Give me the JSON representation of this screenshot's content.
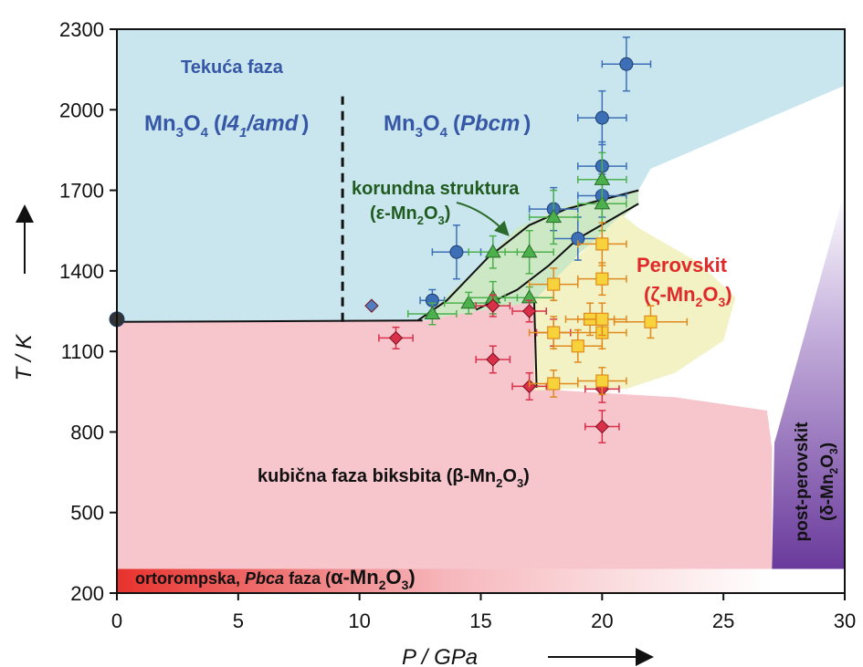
{
  "chart_data": {
    "type": "scatter",
    "title": "",
    "xlabel": "P / GPa",
    "ylabel": "T / K",
    "xlim": [
      0,
      30
    ],
    "ylim": [
      200,
      2300
    ],
    "x_ticks": [
      "0",
      "5",
      "10",
      "15",
      "20",
      "25",
      "30"
    ],
    "y_ticks": [
      "200",
      "500",
      "800",
      "1100",
      "1400",
      "1700",
      "2000",
      "2300"
    ],
    "grid": false,
    "region_labels": {
      "liquid": "Tekuća faza",
      "mn3o4_tet_a": "Mn",
      "mn3o4_tet_b": "3",
      "mn3o4_tet_c": "O",
      "mn3o4_tet_d": "4",
      "mn3o4_tet_e": "(",
      "mn3o4_tet_f": "I4",
      "mn3o4_tet_g": "1",
      "mn3o4_tet_h": "/amd",
      "mn3o4_tet_i": ")",
      "mn3o4_orth_a": "Mn",
      "mn3o4_orth_b": "3",
      "mn3o4_orth_c": "O",
      "mn3o4_orth_d": "4",
      "mn3o4_orth_e": "(",
      "mn3o4_orth_f": "Pbcm",
      "mn3o4_orth_g": ")",
      "corundum_1": "korundna struktura",
      "corundum_2_a": "(ε-Mn",
      "corundum_2_b": "2",
      "corundum_2_c": "O",
      "corundum_2_d": "3",
      "corundum_2_e": ")",
      "perovskite_1": "Perovskit",
      "perovskite_2_a": "(ζ-Mn",
      "perovskite_2_b": "2",
      "perovskite_2_c": "O",
      "perovskite_2_d": "3",
      "perovskite_2_e": ")",
      "bixbyite_a": "kubična faza biksbita (β-Mn",
      "bixbyite_b": "2",
      "bixbyite_c": "O",
      "bixbyite_d": "3",
      "bixbyite_e": ")",
      "orthorhombic_a": "ortorompska, ",
      "orthorhombic_b": "Pbca",
      "orthorhombic_c": " faza (",
      "orthorhombic_d": "α-Mn",
      "orthorhombic_e": "2",
      "orthorhombic_f": "O",
      "orthorhombic_g": "3",
      "orthorhombic_h": ")",
      "post_perovskite_1": "post-perovskit",
      "post_perovskite_2_a": "(δ-Mn",
      "post_perovskite_2_b": "2",
      "post_perovskite_2_c": "O",
      "post_perovskite_2_d": "3",
      "post_perovskite_2_e": ")"
    },
    "regions": [
      {
        "name": "liquid",
        "color": "#c9e6ef",
        "points": [
          [
            0,
            1210
          ],
          [
            0,
            2300
          ],
          [
            30,
            2300
          ],
          [
            30,
            2090
          ],
          [
            22,
            1780
          ],
          [
            21.5,
            1700
          ],
          [
            20.8,
            1670
          ],
          [
            18.8,
            1560
          ],
          [
            17.2,
            1290
          ],
          [
            15.5,
            1270
          ],
          [
            12.8,
            1215
          ]
        ]
      },
      {
        "name": "bixbyite",
        "color": "#f7c6cc",
        "points": [
          [
            0,
            290
          ],
          [
            27,
            290
          ],
          [
            27,
            740
          ],
          [
            26.8,
            880
          ],
          [
            23,
            930
          ],
          [
            17.3,
            960
          ],
          [
            17.2,
            1290
          ],
          [
            15.5,
            1270
          ],
          [
            12.8,
            1215
          ],
          [
            0,
            1210
          ]
        ]
      },
      {
        "name": "corundum",
        "color": "#cde8c4",
        "points": [
          [
            12.5,
            1215
          ],
          [
            14.5,
            1380
          ],
          [
            16.5,
            1560
          ],
          [
            18.5,
            1640
          ],
          [
            21.5,
            1700
          ],
          [
            21.5,
            1650
          ],
          [
            19,
            1460
          ],
          [
            17.5,
            1290
          ],
          [
            15.5,
            1260
          ]
        ]
      },
      {
        "name": "perovskite",
        "color": "#f2f2c4",
        "points": [
          [
            17.2,
            1290
          ],
          [
            18.5,
            1410
          ],
          [
            20.8,
            1610
          ],
          [
            21.5,
            1560
          ],
          [
            24,
            1430
          ],
          [
            25.5,
            1300
          ],
          [
            25,
            1140
          ],
          [
            23,
            1020
          ],
          [
            21,
            960
          ],
          [
            17.2,
            955
          ]
        ]
      },
      {
        "name": "white_gap",
        "color": "#ffffff",
        "points": [
          [
            22,
            1780
          ],
          [
            30,
            2090
          ],
          [
            30,
            1700
          ],
          [
            29.5,
            1540
          ],
          [
            27.5,
            1150
          ],
          [
            27,
            740
          ],
          [
            26.8,
            880
          ],
          [
            23,
            930
          ],
          [
            17.3,
            960
          ],
          [
            21,
            960
          ],
          [
            23,
            1020
          ],
          [
            25,
            1140
          ],
          [
            25.5,
            1300
          ],
          [
            24,
            1430
          ],
          [
            21.5,
            1560
          ],
          [
            21.5,
            1700
          ]
        ]
      },
      {
        "name": "post_perovskite",
        "color": "#9a72c0",
        "points": [
          [
            27,
            290
          ],
          [
            30,
            290
          ],
          [
            30,
            1700
          ],
          [
            28,
            1050
          ],
          [
            27.1,
            760
          ]
        ]
      }
    ],
    "boundaries": [
      {
        "style": "solid",
        "points": [
          [
            0,
            1210
          ],
          [
            12.6,
            1215
          ]
        ]
      },
      {
        "style": "solid",
        "points": [
          [
            12.4,
            1215
          ],
          [
            13.6,
            1290
          ],
          [
            15.3,
            1450
          ],
          [
            17,
            1570
          ],
          [
            18.5,
            1630
          ],
          [
            21.5,
            1700
          ]
        ]
      },
      {
        "style": "solid",
        "points": [
          [
            14.8,
            1255
          ],
          [
            16.5,
            1330
          ],
          [
            17.8,
            1420
          ],
          [
            19,
            1520
          ],
          [
            21.5,
            1650
          ]
        ]
      },
      {
        "style": "solid",
        "points": [
          [
            17.3,
            965
          ],
          [
            17.2,
            1295
          ]
        ]
      },
      {
        "style": "dashed",
        "points": [
          [
            9.3,
            1210
          ],
          [
            9.3,
            2050
          ]
        ]
      }
    ],
    "series": [
      {
        "marker": "circle",
        "color": "#3c6fb5",
        "points": [
          {
            "x": 0,
            "y": 1220,
            "xerr": 0,
            "yerr": 0,
            "color": "#333333"
          },
          {
            "x": 13,
            "y": 1290,
            "xerr": 0.5,
            "yerr": 40
          },
          {
            "x": 14,
            "y": 1470,
            "xerr": 1,
            "yerr": 100
          },
          {
            "x": 18,
            "y": 1630,
            "xerr": 1,
            "yerr": 80
          },
          {
            "x": 19,
            "y": 1520,
            "xerr": 1,
            "yerr": 80
          },
          {
            "x": 20,
            "y": 1680,
            "xerr": 1,
            "yerr": 80
          },
          {
            "x": 20,
            "y": 1790,
            "xerr": 1,
            "yerr": 90
          },
          {
            "x": 20,
            "y": 1970,
            "xerr": 1,
            "yerr": 100
          },
          {
            "x": 21,
            "y": 2170,
            "xerr": 1,
            "yerr": 100
          }
        ]
      },
      {
        "marker": "diamond",
        "color": "#4f7fc0",
        "points": [
          {
            "x": 10.5,
            "y": 1270,
            "xerr": 0,
            "yerr": 0
          }
        ]
      },
      {
        "marker": "triangle",
        "color": "#4cb04c",
        "points": [
          {
            "x": 13,
            "y": 1240,
            "xerr": 1,
            "yerr": 40
          },
          {
            "x": 14.5,
            "y": 1280,
            "xerr": 1,
            "yerr": 40
          },
          {
            "x": 15.5,
            "y": 1300,
            "xerr": 1,
            "yerr": 60
          },
          {
            "x": 15.5,
            "y": 1470,
            "xerr": 1,
            "yerr": 60
          },
          {
            "x": 17,
            "y": 1300,
            "xerr": 1,
            "yerr": 40
          },
          {
            "x": 17,
            "y": 1470,
            "xerr": 1,
            "yerr": 80
          },
          {
            "x": 18,
            "y": 1600,
            "xerr": 1,
            "yerr": 100
          },
          {
            "x": 20,
            "y": 1650,
            "xerr": 1,
            "yerr": 100
          },
          {
            "x": 20,
            "y": 1740,
            "xerr": 1,
            "yerr": 100
          }
        ]
      },
      {
        "marker": "diamond",
        "color": "#d9304a",
        "points": [
          {
            "x": 11.5,
            "y": 1150,
            "xerr": 0.7,
            "yerr": 40
          },
          {
            "x": 15.5,
            "y": 1070,
            "xerr": 0.7,
            "yerr": 50
          },
          {
            "x": 15.5,
            "y": 1270,
            "xerr": 0.7,
            "yerr": 40
          },
          {
            "x": 17,
            "y": 970,
            "xerr": 0.7,
            "yerr": 50
          },
          {
            "x": 17,
            "y": 1250,
            "xerr": 0.7,
            "yerr": 40
          },
          {
            "x": 18,
            "y": 1170,
            "xerr": 0.7,
            "yerr": 50
          },
          {
            "x": 20,
            "y": 960,
            "xerr": 0.7,
            "yerr": 50
          },
          {
            "x": 20,
            "y": 820,
            "xerr": 0.7,
            "yerr": 60
          }
        ]
      },
      {
        "marker": "square",
        "color": "#f7d23a",
        "edge": "#e08a1e",
        "points": [
          {
            "x": 18,
            "y": 980,
            "xerr": 1,
            "yerr": 50
          },
          {
            "x": 18,
            "y": 1170,
            "xerr": 1,
            "yerr": 60
          },
          {
            "x": 18,
            "y": 1350,
            "xerr": 1,
            "yerr": 60
          },
          {
            "x": 19,
            "y": 1120,
            "xerr": 1,
            "yerr": 60
          },
          {
            "x": 19.5,
            "y": 1220,
            "xerr": 1,
            "yerr": 60
          },
          {
            "x": 20,
            "y": 990,
            "xerr": 1,
            "yerr": 50
          },
          {
            "x": 20,
            "y": 1170,
            "xerr": 1,
            "yerr": 60
          },
          {
            "x": 20,
            "y": 1220,
            "xerr": 1,
            "yerr": 60
          },
          {
            "x": 20,
            "y": 1370,
            "xerr": 1,
            "yerr": 60
          },
          {
            "x": 20,
            "y": 1500,
            "xerr": 1,
            "yerr": 80
          },
          {
            "x": 22,
            "y": 1210,
            "xerr": 1.5,
            "yerr": 60
          }
        ]
      }
    ]
  }
}
